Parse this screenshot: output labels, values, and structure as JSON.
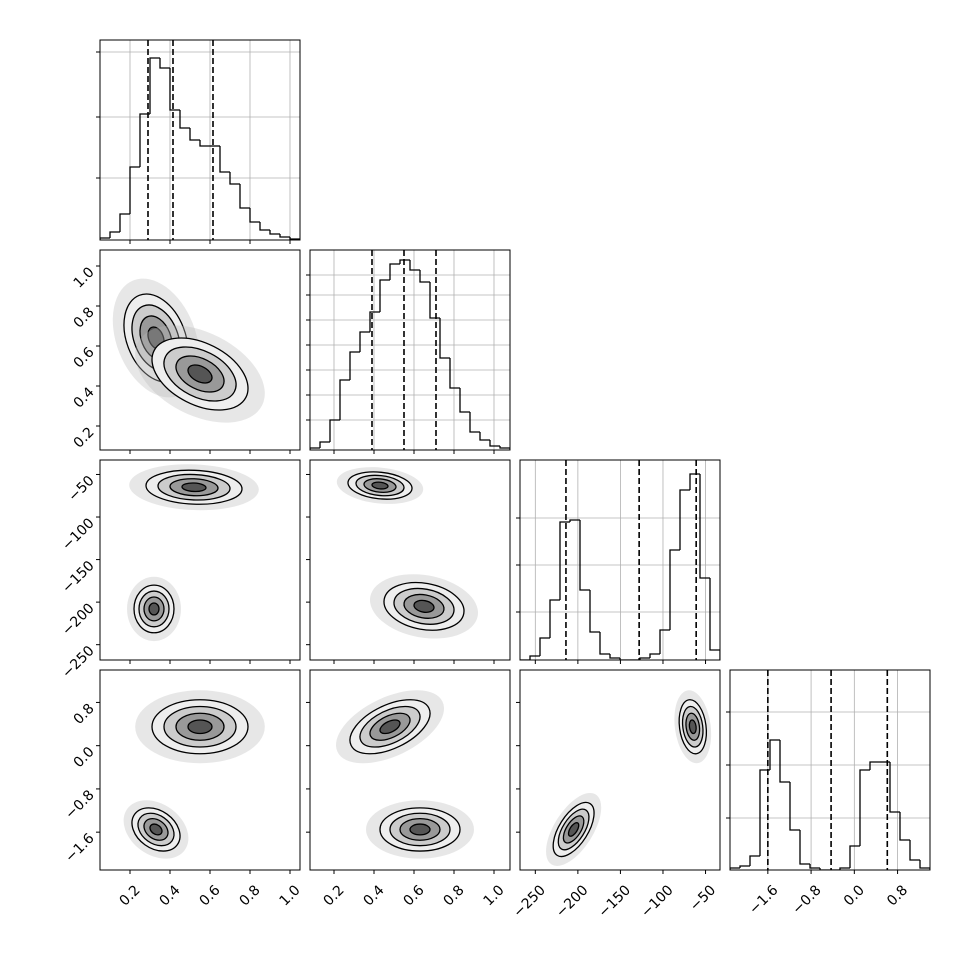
{
  "chart_data": {
    "type": "corner",
    "hist_ylim": [
      0,
      200
    ],
    "contour_levels": [
      0.5,
      1,
      1.5,
      2
    ],
    "parameters": [
      {
        "range": [
          0.05,
          1.05
        ],
        "ticks": [
          0.2,
          0.4,
          0.6,
          0.8,
          {
            "value": 1,
            "label": "1.0"
          }
        ],
        "bins": [
          0.05,
          0.1,
          0.15,
          0.2,
          0.25,
          0.3,
          0.35,
          0.4,
          0.45,
          0.5,
          0.55,
          0.6,
          0.65,
          0.7,
          0.75,
          0.8,
          0.85,
          0.9,
          0.95,
          1.0,
          1.05
        ],
        "counts": [
          2,
          8,
          26,
          73,
          126,
          182,
          172,
          130,
          112,
          100,
          94,
          94,
          68,
          56,
          32,
          18,
          10,
          6,
          3,
          1
        ],
        "hist_ticks": [
          62,
          123,
          188
        ],
        "quantiles": [
          0.29,
          0.415,
          0.615
        ]
      },
      {
        "range": [
          0.08,
          1.08
        ],
        "ticks": [
          0.2,
          0.4,
          0.6,
          0.8,
          {
            "value": 1,
            "label": "1.0"
          }
        ],
        "bins": [
          0.08,
          0.13,
          0.18,
          0.23,
          0.28,
          0.33,
          0.38,
          0.43,
          0.48,
          0.53,
          0.58,
          0.63,
          0.68,
          0.73,
          0.78,
          0.83,
          0.88,
          0.93,
          0.98,
          1.03,
          1.08
        ],
        "counts": [
          2,
          8,
          30,
          70,
          98,
          118,
          138,
          170,
          186,
          190,
          180,
          168,
          132,
          92,
          62,
          38,
          18,
          10,
          4,
          2
        ],
        "hist_ticks": [
          30,
          55,
          80,
          105,
          130,
          155,
          175
        ],
        "quantiles": [
          0.39,
          0.55,
          0.71
        ]
      },
      {
        "range": [
          -268,
          -33
        ],
        "ticks": [
          {
            "value": -250,
            "label": "−250"
          },
          {
            "value": -200,
            "label": "−200"
          },
          {
            "value": -150,
            "label": "−150"
          },
          {
            "value": -100,
            "label": "−100"
          },
          {
            "value": -50,
            "label": "−50"
          }
        ],
        "bins": [
          -268,
          -256.25,
          -244.5,
          -232.75,
          -221,
          -209.25,
          -197.5,
          -185.75,
          -174,
          -162.25,
          -150.5,
          -138.75,
          -127,
          -115.25,
          -103.5,
          -91.75,
          -80,
          -68.25,
          -56.5,
          -44.75,
          -33
        ],
        "counts": [
          0,
          4,
          22,
          60,
          138,
          140,
          70,
          28,
          6,
          2,
          0,
          0,
          2,
          6,
          30,
          110,
          170,
          186,
          82,
          10
        ],
        "hist_ticks": [
          48,
          95,
          142
        ],
        "quantiles": [
          -214,
          -128,
          -61
        ]
      },
      {
        "range": [
          -2.3,
          1.4
        ],
        "ticks": [
          {
            "value": -1.6,
            "label": "−1.6"
          },
          {
            "value": -0.8,
            "label": "−0.8"
          },
          {
            "value": 0,
            "label": "0.0"
          },
          0.8
        ],
        "bins": [
          -2.3,
          -2.115,
          -1.93,
          -1.745,
          -1.56,
          -1.375,
          -1.19,
          -1.005,
          -0.82,
          -0.635,
          -0.45,
          -0.265,
          -0.08,
          0.105,
          0.29,
          0.475,
          0.66,
          0.845,
          1.03,
          1.215,
          1.4
        ],
        "counts": [
          2,
          4,
          14,
          100,
          130,
          88,
          40,
          6,
          2,
          0,
          0,
          2,
          24,
          100,
          108,
          108,
          58,
          30,
          10,
          2
        ],
        "hist_ticks": [
          52,
          105,
          158
        ],
        "quantiles": [
          -1.6,
          -0.43,
          0.61
        ]
      }
    ],
    "pairs": [
      {
        "row": 1,
        "col": 0,
        "blobs": [
          {
            "x": 0.33,
            "y": 0.64,
            "sx": 0.08,
            "sy": 0.11,
            "rho": -0.3
          },
          {
            "x": 0.55,
            "y": 0.46,
            "sx": 0.12,
            "sy": 0.09,
            "rho": -0.4
          }
        ]
      },
      {
        "row": 2,
        "col": 0,
        "blobs": [
          {
            "x": 0.52,
            "y": -65,
            "sx": 0.12,
            "sy": 10,
            "rho": -0.1
          },
          {
            "x": 0.32,
            "y": -208,
            "sx": 0.05,
            "sy": 14,
            "rho": 0
          }
        ]
      },
      {
        "row": 3,
        "col": 0,
        "blobs": [
          {
            "x": 0.55,
            "y": 0.35,
            "sx": 0.12,
            "sy": 0.25,
            "rho": 0
          },
          {
            "x": 0.33,
            "y": -1.55,
            "sx": 0.06,
            "sy": 0.2,
            "rho": -0.3
          }
        ]
      },
      {
        "row": 2,
        "col": 1,
        "blobs": [
          {
            "x": 0.43,
            "y": -63,
            "sx": 0.08,
            "sy": 8,
            "rho": -0.2
          },
          {
            "x": 0.65,
            "y": -205,
            "sx": 0.1,
            "sy": 14,
            "rho": -0.2
          }
        ]
      },
      {
        "row": 3,
        "col": 1,
        "blobs": [
          {
            "x": 0.48,
            "y": 0.35,
            "sx": 0.1,
            "sy": 0.25,
            "rho": 0.5
          },
          {
            "x": 0.63,
            "y": -1.55,
            "sx": 0.1,
            "sy": 0.2,
            "rho": 0
          }
        ]
      },
      {
        "row": 3,
        "col": 2,
        "blobs": [
          {
            "x": -65,
            "y": 0.35,
            "sx": 8,
            "sy": 0.25,
            "rho": -0.2
          },
          {
            "x": -205,
            "y": -1.55,
            "sx": 12,
            "sy": 0.25,
            "rho": 0.6
          }
        ]
      }
    ]
  }
}
